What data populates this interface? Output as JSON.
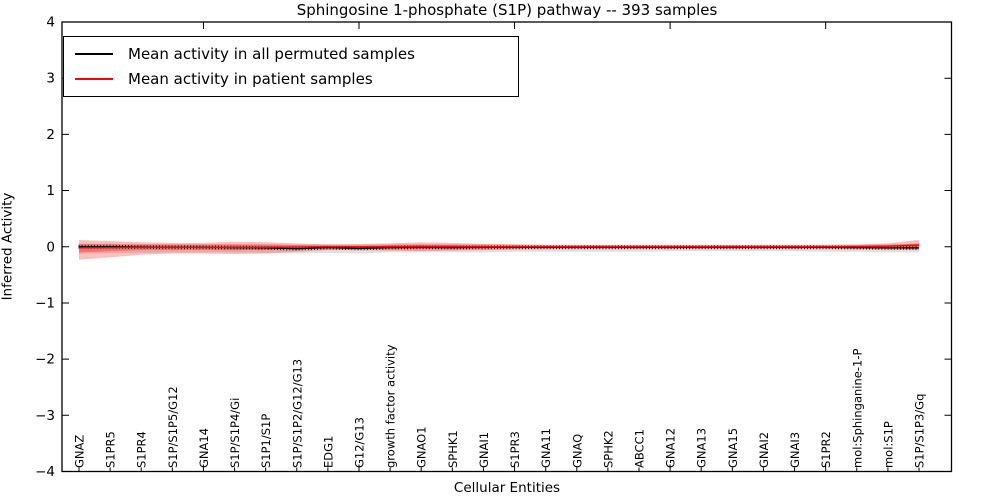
{
  "title": "Sphingosine 1-phosphate (S1P) pathway -- 393 samples",
  "axes": {
    "x_label": "Cellular Entities",
    "y_label": "Inferred Activity",
    "y_tick_labels": [
      "4",
      "3",
      "2",
      "1",
      "0",
      "−1",
      "−2",
      "−3",
      "−4"
    ],
    "ylim": [
      -4,
      4
    ]
  },
  "legend": {
    "items": [
      {
        "label": "Mean activity in all permuted samples",
        "color": "#000000"
      },
      {
        "label": "Mean activity in patient samples",
        "color": "#ff0000"
      }
    ]
  },
  "chart_data": {
    "type": "line",
    "title": "Sphingosine 1-phosphate (S1P) pathway -- 393 samples",
    "xlabel": "Cellular Entities",
    "ylabel": "Inferred Activity",
    "ylim": [
      -4,
      4
    ],
    "grid": false,
    "legend_position": "upper left",
    "x_major_tick_indices": [
      4,
      9,
      14,
      19,
      24
    ],
    "categories": [
      "GNAZ",
      "S1PR5",
      "S1PR4",
      "S1P/S1P5/G12",
      "GNA14",
      "S1P/S1P4/Gi",
      "S1P1/S1P",
      "S1P/S1P2/G12/G13",
      "EDG1",
      "G12/G13",
      "growth factor activity",
      "GNAO1",
      "SPHK1",
      "GNAI1",
      "S1PR3",
      "GNA11",
      "GNAQ",
      "SPHK2",
      "ABCC1",
      "GNA12",
      "GNA13",
      "GNA15",
      "GNAI2",
      "GNAI3",
      "S1PR2",
      "mol:Sphinganine-1-P",
      "mol:S1P",
      "S1P/S1P3/Gq"
    ],
    "series": [
      {
        "name": "Mean activity in all permuted samples",
        "color": "#000000",
        "marker": "vertical-tick",
        "values": [
          0.0,
          0.0,
          -0.005,
          -0.01,
          -0.01,
          -0.015,
          -0.02,
          -0.035,
          -0.015,
          -0.03,
          -0.015,
          -0.01,
          -0.015,
          -0.01,
          -0.01,
          -0.01,
          -0.01,
          -0.01,
          -0.01,
          -0.01,
          -0.01,
          -0.01,
          -0.01,
          -0.01,
          -0.01,
          -0.015,
          -0.02,
          -0.02
        ],
        "band": {
          "color": "#000000",
          "opacity": 0.12,
          "upper": [
            0.06,
            0.055,
            0.05,
            0.05,
            0.05,
            0.05,
            0.05,
            0.04,
            0.05,
            0.04,
            0.05,
            0.05,
            0.05,
            0.05,
            0.05,
            0.04,
            0.04,
            0.04,
            0.04,
            0.04,
            0.04,
            0.04,
            0.04,
            0.04,
            0.04,
            0.04,
            0.05,
            0.05
          ],
          "lower": [
            -0.12,
            -0.115,
            -0.11,
            -0.1,
            -0.1,
            -0.1,
            -0.11,
            -0.12,
            -0.11,
            -0.12,
            -0.1,
            -0.1,
            -0.1,
            -0.1,
            -0.09,
            -0.09,
            -0.09,
            -0.09,
            -0.09,
            -0.08,
            -0.08,
            -0.08,
            -0.08,
            -0.08,
            -0.09,
            -0.09,
            -0.1,
            -0.1
          ]
        }
      },
      {
        "name": "Mean activity in patient samples",
        "color": "#ff0000",
        "marker": "none",
        "values": [
          -0.02,
          -0.015,
          -0.01,
          -0.01,
          -0.01,
          -0.01,
          -0.01,
          -0.005,
          0.0,
          0.0,
          0.0,
          0.005,
          0.005,
          0.0,
          0.0,
          0.0,
          0.0,
          0.0,
          0.0,
          0.0,
          0.0,
          0.0,
          0.0,
          0.0,
          0.0,
          0.005,
          0.01,
          0.03
        ],
        "band": {
          "color": "#ff0000",
          "opacity": 0.25,
          "upper": [
            0.12,
            0.1,
            0.08,
            0.07,
            0.07,
            0.09,
            0.08,
            0.06,
            0.04,
            0.05,
            0.06,
            0.08,
            0.07,
            0.05,
            0.04,
            0.03,
            0.03,
            0.03,
            0.03,
            0.03,
            0.03,
            0.03,
            0.03,
            0.03,
            0.03,
            0.04,
            0.06,
            0.12
          ],
          "lower": [
            -0.23,
            -0.19,
            -0.14,
            -0.12,
            -0.12,
            -0.13,
            -0.12,
            -0.09,
            -0.06,
            -0.06,
            -0.07,
            -0.08,
            -0.07,
            -0.06,
            -0.05,
            -0.04,
            -0.04,
            -0.04,
            -0.04,
            -0.04,
            -0.04,
            -0.04,
            -0.04,
            -0.04,
            -0.04,
            -0.04,
            -0.05,
            -0.06
          ]
        },
        "inner_band": {
          "color": "#ff0000",
          "opacity": 0.3,
          "upper": [
            0.05,
            0.045,
            0.04,
            0.035,
            0.035,
            0.04,
            0.035,
            0.03,
            0.02,
            0.02,
            0.03,
            0.035,
            0.03,
            0.025,
            0.02,
            0.015,
            0.015,
            0.015,
            0.015,
            0.015,
            0.015,
            0.015,
            0.015,
            0.015,
            0.015,
            0.02,
            0.03,
            0.06
          ],
          "lower": [
            -0.1,
            -0.08,
            -0.06,
            -0.055,
            -0.055,
            -0.06,
            -0.055,
            -0.04,
            -0.03,
            -0.03,
            -0.035,
            -0.04,
            -0.035,
            -0.03,
            -0.025,
            -0.02,
            -0.02,
            -0.02,
            -0.02,
            -0.02,
            -0.02,
            -0.02,
            -0.02,
            -0.02,
            -0.02,
            -0.025,
            -0.03,
            -0.04
          ]
        }
      }
    ]
  }
}
